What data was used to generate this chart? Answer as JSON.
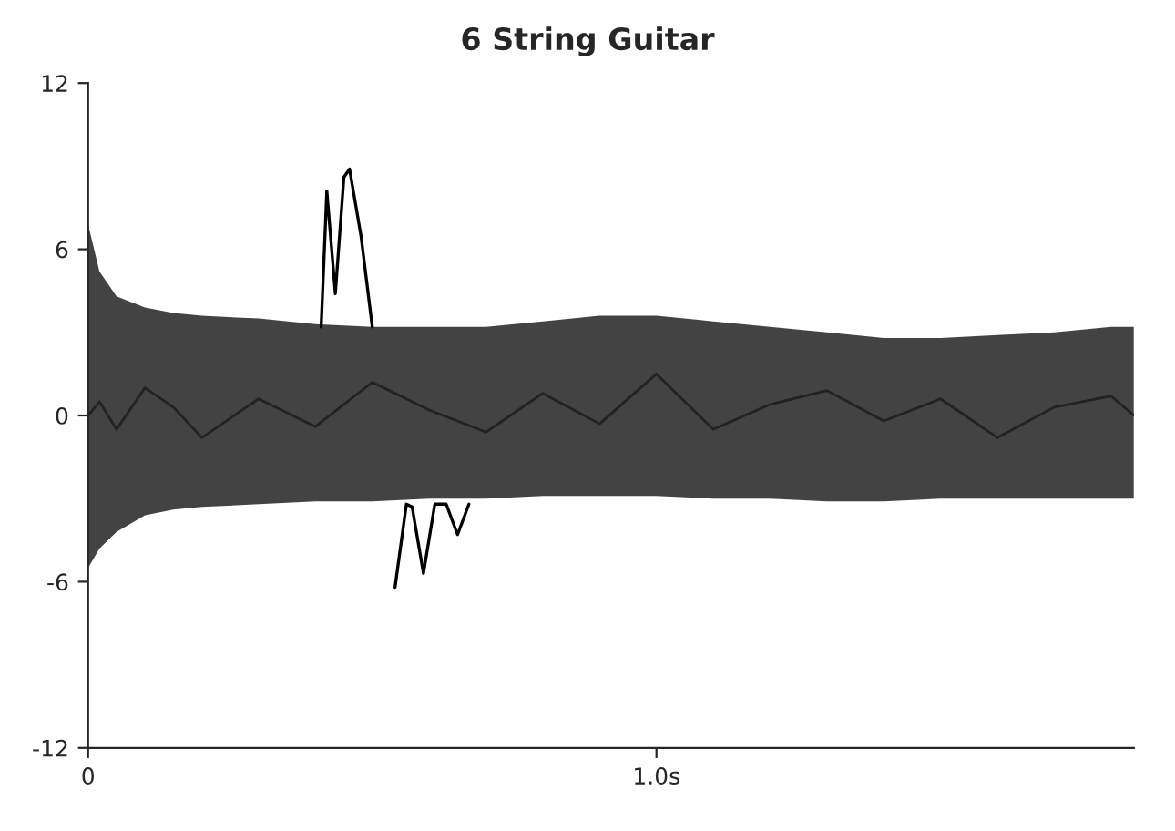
{
  "chart_data": {
    "type": "line",
    "title": "6 String Guitar",
    "xlim": [
      0,
      1.84
    ],
    "xticks": [
      {
        "value": 0,
        "label": "0"
      },
      {
        "value": 1.0,
        "label": "1.0s"
      }
    ],
    "ylim": [
      -12,
      12
    ],
    "yticks": [
      12,
      6,
      0,
      -6,
      -12
    ],
    "grid": false,
    "series": [
      {
        "color": "#222222",
        "x": [
          0,
          0.02,
          0.05,
          0.1,
          0.15,
          0.2,
          0.3,
          0.4,
          0.5,
          0.6,
          0.7,
          0.8,
          0.9,
          1.0,
          1.1,
          1.2,
          1.3,
          1.4,
          1.5,
          1.6,
          1.7,
          1.8,
          1.84
        ],
        "values": [
          0,
          0.5,
          -0.5,
          1,
          0.3,
          -0.8,
          0.6,
          -0.4,
          1.2,
          0.2,
          -0.6,
          0.8,
          -0.3,
          1.5,
          -0.5,
          0.4,
          0.9,
          -0.2,
          0.6,
          -0.8,
          0.3,
          0.7,
          0
        ],
        "lower": [
          -5.5,
          -4.8,
          -4.2,
          -3.6,
          -3.4,
          -3.3,
          -3.2,
          -3.1,
          -3.1,
          -3.0,
          -3.0,
          -2.9,
          -2.9,
          -2.9,
          -3.0,
          -3.0,
          -3.1,
          -3.1,
          -3.0,
          -3.0,
          -3.0,
          -3.0,
          -3.0
        ],
        "upper": [
          6.9,
          5.2,
          4.3,
          3.9,
          3.7,
          3.6,
          3.5,
          3.3,
          3.2,
          3.2,
          3.2,
          3.4,
          3.6,
          3.6,
          3.4,
          3.2,
          3.0,
          2.8,
          2.8,
          2.9,
          3.0,
          3.2,
          3.2
        ]
      },
      {
        "color": "#000000",
        "x": [
          0.41,
          0.42,
          0.435,
          0.45,
          0.46,
          0.48,
          0.5,
          0.52,
          0.54,
          0.56,
          0.57,
          0.59,
          0.61,
          0.63,
          0.65,
          0.67
        ],
        "values": [
          3.2,
          8.1,
          4.4,
          8.6,
          8.9,
          6.5,
          3.2,
          null,
          -6.2,
          -3.2,
          -3.3,
          -5.7,
          -3.2,
          -3.2,
          -4.3,
          -3.2
        ]
      }
    ]
  }
}
